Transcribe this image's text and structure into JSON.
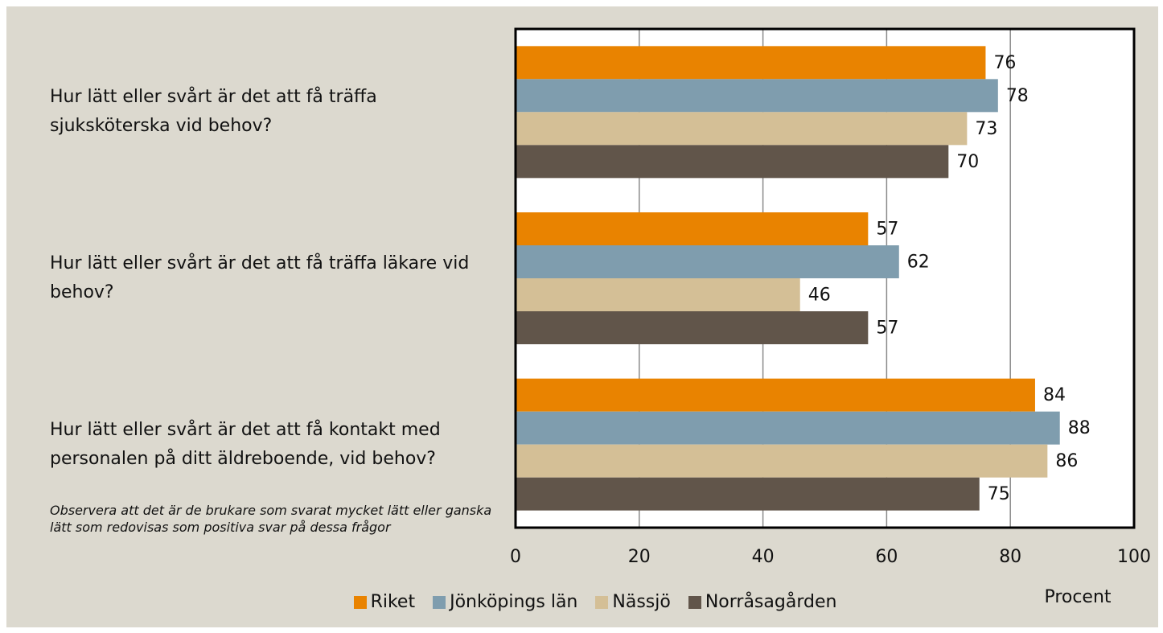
{
  "chart_data": {
    "type": "bar",
    "orientation": "horizontal",
    "categories": [
      "Hur lätt eller svårt är det att få träffa sjuksköterska vid behov?",
      "Hur lätt eller svårt är det att få träffa läkare vid behov?",
      "Hur lätt eller svårt är det att få kontakt med personalen på ditt äldreboende, vid behov?"
    ],
    "series": [
      {
        "name": "Riket",
        "color": "#e98300",
        "values": [
          76,
          57,
          84
        ]
      },
      {
        "name": "Jönköpings län",
        "color": "#7f9dae",
        "values": [
          78,
          62,
          88
        ]
      },
      {
        "name": "Nässjö",
        "color": "#d4bf96",
        "values": [
          73,
          46,
          86
        ]
      },
      {
        "name": "Norråsagården",
        "color": "#61554a",
        "values": [
          70,
          57,
          75
        ]
      }
    ],
    "xlim": [
      0,
      100
    ],
    "xticks": [
      0,
      20,
      40,
      60,
      80,
      100
    ],
    "grid": true,
    "x_label": "Procent",
    "annotation": "Observera att det är de brukare som svarat mycket lätt eller ganska lätt som redovisas som positiva svar på dessa frågor",
    "legend": "bottom"
  }
}
